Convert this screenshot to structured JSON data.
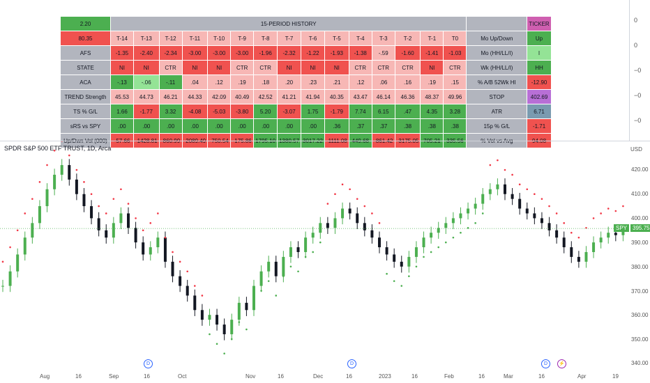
{
  "table": {
    "corner_value": "2.20",
    "history_header": "15-PERIOD HISTORY",
    "ticker_header": "TICKER",
    "price_value": "80.35",
    "periods": [
      "T-14",
      "T-13",
      "T-12",
      "T-11",
      "T-10",
      "T-9",
      "T-8",
      "T-7",
      "T-6",
      "T-5",
      "T-4",
      "T-3",
      "T-2",
      "T-1",
      "T0"
    ],
    "rows": [
      {
        "label": "AFS",
        "values": [
          "-1.35",
          "-2.40",
          "-2.34",
          "-3.00",
          "-3.00",
          "-3.00",
          "-1.96",
          "-2.32",
          "-1.22",
          "-1.93",
          "-1.38",
          "-.59",
          "-1.60",
          "-1.41",
          "-1.03"
        ],
        "colors": [
          "red",
          "red",
          "red",
          "red",
          "red",
          "red",
          "red",
          "red",
          "red",
          "red",
          "red",
          "lred",
          "red",
          "red",
          "red"
        ],
        "side_label": "Mo (HH/LL/I)",
        "side_value": "I",
        "side_color": "lgreen"
      },
      {
        "label": "STATE",
        "values": [
          "NI",
          "NI",
          "CTR",
          "NI",
          "NI",
          "CTR",
          "CTR",
          "NI",
          "NI",
          "NI",
          "CTR",
          "CTR",
          "CTR",
          "NI",
          "CTR"
        ],
        "colors": [
          "red",
          "red",
          "lred",
          "red",
          "red",
          "lred",
          "lred",
          "red",
          "red",
          "red",
          "lred",
          "lred",
          "lred",
          "red",
          "lred"
        ],
        "side_label": "Wk (HH/LL/I)",
        "side_value": "HH",
        "side_color": "green"
      },
      {
        "label": "ACA",
        "values": [
          "-.13",
          "-.06",
          "-.11",
          ".04",
          ".12",
          ".19",
          ".18",
          ".20",
          ".23",
          ".21",
          ".12",
          ".06",
          ".16",
          ".19",
          ".15"
        ],
        "colors": [
          "green",
          "lgreen",
          "green",
          "lred",
          "lred",
          "lred",
          "lred",
          "lred",
          "lred",
          "lred",
          "lred",
          "lred",
          "lred",
          "lred",
          "lred"
        ],
        "side_label": "% A/B 52Wk HI",
        "side_value": "-12.90",
        "side_color": "red"
      },
      {
        "label": "TREND Strength",
        "values": [
          "45.53",
          "44.73",
          "46.21",
          "44.33",
          "42.09",
          "40.49",
          "42.52",
          "41.21",
          "41.94",
          "40.35",
          "43.47",
          "46.14",
          "46.36",
          "48.37",
          "49.96"
        ],
        "colors": [
          "lred",
          "lred",
          "lred",
          "lred",
          "lred",
          "lred",
          "lred",
          "lred",
          "lred",
          "lred",
          "lred",
          "lred",
          "lred",
          "lred",
          "lred"
        ],
        "side_label": "STOP",
        "side_value": "402.69",
        "side_color": "purple"
      },
      {
        "label": "TS % G/L",
        "values": [
          "1.66",
          "-1.77",
          "3.32",
          "-4.08",
          "-5.03",
          "-3.80",
          "5.20",
          "-3.07",
          "1.75",
          "-1.79",
          "7.74",
          "6.15",
          ".47",
          "4.35",
          "3.28"
        ],
        "colors": [
          "green",
          "red",
          "green",
          "red",
          "red",
          "red",
          "green",
          "red",
          "green",
          "red",
          "green",
          "green",
          "green",
          "green",
          "green"
        ],
        "side_label": "ATR",
        "side_value": "6.71",
        "side_color": "steel"
      },
      {
        "label": "sRS vs SPY",
        "values": [
          ".00",
          ".00",
          ".00",
          ".00",
          ".00",
          ".00",
          ".00",
          ".00",
          ".00",
          ".36",
          ".37",
          ".37",
          ".38",
          ".38",
          ".38"
        ],
        "colors": [
          "green",
          "green",
          "green",
          "green",
          "green",
          "green",
          "green",
          "green",
          "green",
          "green",
          "green",
          "green",
          "green",
          "green",
          "green"
        ],
        "side_label": "15p % G/L",
        "side_value": "-1.71",
        "side_color": "red"
      },
      {
        "label": "Up/Dwn Vol (000)",
        "values": [
          "-57.66",
          "-1428.81",
          "-860.99",
          "-2089.49",
          "-750.54",
          "-175.86",
          "1795.10",
          "1380.57",
          "3017.22",
          "-1111.08",
          "449.68",
          "-861.42",
          "-3175.05",
          "705.21",
          "335.56"
        ],
        "colors": [
          "red",
          "red",
          "red",
          "red",
          "red",
          "red",
          "green",
          "green",
          "green",
          "red",
          "green",
          "red",
          "red",
          "green",
          "green"
        ],
        "side_label": "% Vol vs Avg",
        "side_value": "94.08",
        "side_color": "red"
      }
    ],
    "mo_updown_label": "Mo Up/Down",
    "mo_updown_value": "Up"
  },
  "top_scale": [
    "0",
    "0",
    "−0",
    "−0",
    "−0"
  ],
  "chart": {
    "title": "SPDR S&P 500 ETF TRUST, 1D, Arca",
    "currency": "USD",
    "symbol": "SPY",
    "last_price": "395.75",
    "y_ticks": [
      "420.00",
      "410.00",
      "400.00",
      "390.00",
      "380.00",
      "370.00",
      "360.00",
      "350.00",
      "340.00"
    ],
    "x_ticks": [
      "Aug",
      "16",
      "Sep",
      "16",
      "Oct",
      "Nov",
      "16",
      "Dec",
      "16",
      "2023",
      "16",
      "Feb",
      "16",
      "Mar",
      "16",
      "Apr",
      "19"
    ],
    "event_marker": "D",
    "split_marker": "⚡",
    "colors": {
      "up": "#4caf50",
      "down": "#131722",
      "stop_red": "#f23645",
      "stop_green": "#4caf50"
    }
  }
}
